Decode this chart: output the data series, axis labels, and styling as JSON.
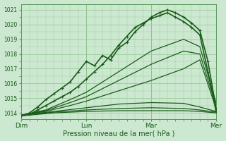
{
  "title": "",
  "xlabel": "Pression niveau de la mer( hPa )",
  "ylabel": "",
  "bg_color": "#cce8d0",
  "plot_bg_color": "#cce8d0",
  "grid_color": "#99cc99",
  "line_color": "#1a5c1a",
  "ylim": [
    1013.6,
    1021.4
  ],
  "yticks": [
    1014,
    1015,
    1016,
    1017,
    1018,
    1019,
    1020,
    1021
  ],
  "xtick_labels": [
    "Dim",
    "Lun",
    "Mar",
    "Mer"
  ],
  "xtick_positions": [
    0,
    48,
    96,
    144
  ],
  "total_hours": 144,
  "lines": [
    {
      "x": [
        0,
        24,
        48,
        72,
        96,
        120,
        132,
        144
      ],
      "y": [
        1013.8,
        1014.0,
        1014.1,
        1014.15,
        1014.15,
        1014.15,
        1014.1,
        1014.0
      ],
      "lw": 0.9,
      "marker": null
    },
    {
      "x": [
        0,
        24,
        48,
        72,
        96,
        120,
        132,
        144
      ],
      "y": [
        1013.85,
        1014.05,
        1014.2,
        1014.3,
        1014.35,
        1014.3,
        1014.2,
        1014.05
      ],
      "lw": 0.9,
      "marker": null
    },
    {
      "x": [
        0,
        24,
        48,
        72,
        96,
        120,
        132,
        144
      ],
      "y": [
        1013.85,
        1014.1,
        1014.35,
        1014.6,
        1014.7,
        1014.65,
        1014.4,
        1014.1
      ],
      "lw": 0.9,
      "marker": null
    },
    {
      "x": [
        0,
        18,
        36,
        48,
        72,
        96,
        120,
        132,
        144
      ],
      "y": [
        1013.85,
        1014.1,
        1014.5,
        1014.8,
        1015.5,
        1016.2,
        1017.0,
        1017.6,
        1014.3
      ],
      "lw": 0.9,
      "marker": null
    },
    {
      "x": [
        0,
        18,
        36,
        48,
        72,
        96,
        120,
        132,
        144
      ],
      "y": [
        1013.85,
        1014.15,
        1014.7,
        1015.1,
        1016.2,
        1017.3,
        1018.2,
        1018.0,
        1014.5
      ],
      "lw": 0.9,
      "marker": null
    },
    {
      "x": [
        0,
        18,
        36,
        48,
        72,
        96,
        120,
        132,
        144
      ],
      "y": [
        1013.85,
        1014.2,
        1014.9,
        1015.4,
        1016.8,
        1018.2,
        1019.0,
        1018.5,
        1014.7
      ],
      "lw": 0.9,
      "marker": null
    },
    {
      "x": [
        0,
        6,
        12,
        18,
        24,
        30,
        36,
        42,
        48,
        54,
        60,
        66,
        72,
        78,
        84,
        90,
        96,
        102,
        108,
        114,
        120,
        126,
        132,
        138,
        144
      ],
      "y": [
        1013.8,
        1013.9,
        1014.2,
        1014.5,
        1014.8,
        1015.1,
        1015.4,
        1015.8,
        1016.3,
        1016.8,
        1017.3,
        1017.9,
        1018.6,
        1019.2,
        1019.8,
        1020.1,
        1020.4,
        1020.6,
        1020.8,
        1020.5,
        1020.2,
        1019.8,
        1019.3,
        1016.8,
        1014.1
      ],
      "lw": 1.2,
      "marker": "+"
    },
    {
      "x": [
        0,
        6,
        12,
        18,
        24,
        30,
        36,
        42,
        48,
        54,
        60,
        66,
        72,
        78,
        84,
        90,
        96,
        102,
        108,
        114,
        120,
        126,
        132,
        138,
        144
      ],
      "y": [
        1013.8,
        1014.0,
        1014.4,
        1014.9,
        1015.3,
        1015.7,
        1016.1,
        1016.8,
        1017.5,
        1017.2,
        1017.9,
        1017.6,
        1018.4,
        1018.8,
        1019.5,
        1020.0,
        1020.5,
        1020.8,
        1021.0,
        1020.8,
        1020.5,
        1020.1,
        1019.6,
        1017.5,
        1014.3
      ],
      "lw": 1.2,
      "marker": "+"
    }
  ],
  "markersize": 2.5,
  "markeredgewidth": 0.8
}
